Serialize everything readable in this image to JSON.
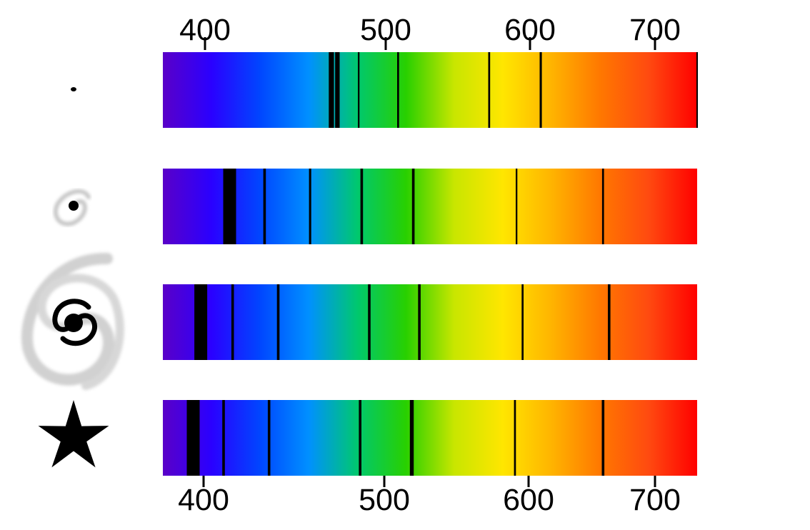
{
  "axes": {
    "top_ticks": [
      {
        "value": 400,
        "label": "400"
      },
      {
        "value": 500,
        "label": "500"
      },
      {
        "value": 600,
        "label": "600"
      },
      {
        "value": 700,
        "label": "700"
      }
    ],
    "bottom_ticks": [
      {
        "value": 400,
        "label": "400"
      },
      {
        "value": 500,
        "label": "500"
      },
      {
        "value": 600,
        "label": "600"
      },
      {
        "value": 700,
        "label": "700"
      }
    ],
    "wavelength_range": [
      376,
      728
    ]
  },
  "spectrum_colors": [
    "#5a00c8",
    "#2a00ff",
    "#0046ff",
    "#0090ff",
    "#00c86e",
    "#28d000",
    "#c8e600",
    "#ffe600",
    "#ffb400",
    "#ff7800",
    "#ff4a10",
    "#ff0000"
  ],
  "spectra": [
    {
      "object": "distant-galaxy-dot",
      "absorption_lines": [
        {
          "wavelength": 487,
          "strength": 1.6
        },
        {
          "wavelength": 491,
          "strength": 1.4
        },
        {
          "wavelength": 505,
          "strength": 0.5
        },
        {
          "wavelength": 531,
          "strength": 0.6
        },
        {
          "wavelength": 591,
          "strength": 0.6
        },
        {
          "wavelength": 625,
          "strength": 0.7
        },
        {
          "wavelength": 728,
          "strength": 0.4
        }
      ]
    },
    {
      "object": "small-spiral-galaxy",
      "absorption_lines": [
        {
          "wavelength": 420,
          "strength": 4.0
        },
        {
          "wavelength": 443,
          "strength": 0.8
        },
        {
          "wavelength": 473,
          "strength": 0.7
        },
        {
          "wavelength": 507,
          "strength": 0.8
        },
        {
          "wavelength": 541,
          "strength": 0.8
        },
        {
          "wavelength": 609,
          "strength": 0.5
        },
        {
          "wavelength": 666,
          "strength": 0.6
        }
      ]
    },
    {
      "object": "large-spiral-galaxy",
      "absorption_lines": [
        {
          "wavelength": 401,
          "strength": 4.0
        },
        {
          "wavelength": 422,
          "strength": 0.8
        },
        {
          "wavelength": 452,
          "strength": 0.8
        },
        {
          "wavelength": 512,
          "strength": 0.8
        },
        {
          "wavelength": 545,
          "strength": 0.8
        },
        {
          "wavelength": 613,
          "strength": 0.6
        },
        {
          "wavelength": 670,
          "strength": 0.8
        }
      ]
    },
    {
      "object": "nearby-star",
      "absorption_lines": [
        {
          "wavelength": 396,
          "strength": 4.0
        },
        {
          "wavelength": 416,
          "strength": 0.8
        },
        {
          "wavelength": 446,
          "strength": 0.8
        },
        {
          "wavelength": 506,
          "strength": 0.8
        },
        {
          "wavelength": 540,
          "strength": 1.2
        },
        {
          "wavelength": 608,
          "strength": 0.6
        },
        {
          "wavelength": 666,
          "strength": 0.8
        }
      ]
    }
  ],
  "icons": {
    "row1": "tiny-dot-galaxy-icon",
    "row2": "small-spiral-galaxy-icon",
    "row3": "large-spiral-galaxy-icon",
    "row4": "star-icon"
  }
}
